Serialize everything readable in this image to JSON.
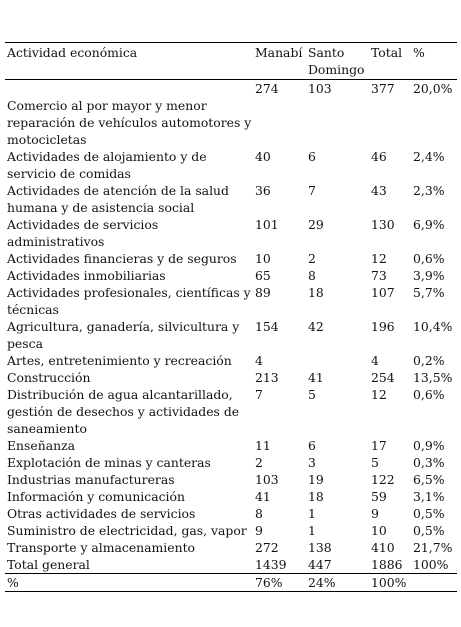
{
  "table": {
    "headers": {
      "activity": "Actividad económica",
      "manabi": "Manabí",
      "santo_domingo": "Santo Domingo",
      "total": "Total",
      "percent": "%"
    },
    "rows": [
      {
        "activity": "Comercio al por mayor y menor reparación de vehículos automotores y motocicletas",
        "manabi": "274",
        "santo_domingo": "103",
        "total": "377",
        "percent": "20,0%"
      },
      {
        "activity": "Actividades de alojamiento y de servicio de comidas",
        "manabi": "40",
        "santo_domingo": "6",
        "total": "46",
        "percent": "2,4%"
      },
      {
        "activity": "Actividades de atención de la salud humana y de asistencia social",
        "manabi": "36",
        "santo_domingo": "7",
        "total": "43",
        "percent": "2,3%"
      },
      {
        "activity": "Actividades de servicios administrativos",
        "manabi": "101",
        "santo_domingo": "29",
        "total": "130",
        "percent": "6,9%"
      },
      {
        "activity": "Actividades financieras y de seguros",
        "manabi": "10",
        "santo_domingo": "2",
        "total": "12",
        "percent": "0,6%"
      },
      {
        "activity": "Actividades inmobiliarias",
        "manabi": "65",
        "santo_domingo": "8",
        "total": "73",
        "percent": "3,9%"
      },
      {
        "activity": "Actividades profesionales, científicas y técnicas",
        "manabi": "89",
        "santo_domingo": "18",
        "total": "107",
        "percent": "5,7%"
      },
      {
        "activity": "Agricultura, ganadería, silvicultura y pesca",
        "manabi": "154",
        "santo_domingo": "42",
        "total": "196",
        "percent": "10,4%"
      },
      {
        "activity": "Artes, entretenimiento y recreación",
        "manabi": "4",
        "santo_domingo": "",
        "total": "4",
        "percent": "0,2%"
      },
      {
        "activity": "Construcción",
        "manabi": "213",
        "santo_domingo": "41",
        "total": "254",
        "percent": "13,5%"
      },
      {
        "activity": "Distribución de agua alcantarillado, gestión de desechos y actividades de saneamiento",
        "manabi": "7",
        "santo_domingo": "5",
        "total": "12",
        "percent": "0,6%"
      },
      {
        "activity": "Enseñanza",
        "manabi": "11",
        "santo_domingo": "6",
        "total": "17",
        "percent": "0,9%"
      },
      {
        "activity": "Explotación de minas y canteras",
        "manabi": "2",
        "santo_domingo": "3",
        "total": "5",
        "percent": "0,3%"
      },
      {
        "activity": "Industrias manufactureras",
        "manabi": "103",
        "santo_domingo": "19",
        "total": "122",
        "percent": "6,5%"
      },
      {
        "activity": "Información y comunicación",
        "manabi": "41",
        "santo_domingo": "18",
        "total": "59",
        "percent": "3,1%"
      },
      {
        "activity": "Otras actividades de servicios",
        "manabi": "8",
        "santo_domingo": "1",
        "total": "9",
        "percent": "0,5%"
      },
      {
        "activity": "Suministro de electricidad, gas, vapor",
        "manabi": "9",
        "santo_domingo": "1",
        "total": "10",
        "percent": "0,5%"
      },
      {
        "activity": "Transporte y almacenamiento",
        "manabi": "272",
        "santo_domingo": "138",
        "total": "410",
        "percent": "21,7%"
      }
    ],
    "total_row": {
      "activity": "Total general",
      "manabi": "1439",
      "santo_domingo": "447",
      "total": "1886",
      "percent": "100%"
    },
    "percent_row": {
      "activity": "%",
      "manabi": "76%",
      "santo_domingo": "24%",
      "total": "100%",
      "percent": ""
    }
  }
}
